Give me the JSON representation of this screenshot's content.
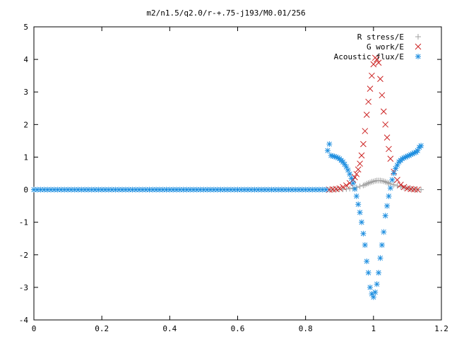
{
  "chart_data": {
    "type": "scatter",
    "title": "m2/n1.5/q2.0/r-+.75-j193/M0.01/256",
    "xlabel": "",
    "ylabel": "",
    "xlim": [
      0,
      1.2
    ],
    "ylim": [
      -4,
      5
    ],
    "x_ticks": [
      "0",
      "0.2",
      "0.4",
      "0.6",
      "0.8",
      "1",
      "1.2"
    ],
    "y_ticks": [
      "-4",
      "-3",
      "-2",
      "-1",
      "0",
      "1",
      "2",
      "3",
      "4",
      "5"
    ],
    "grid": false,
    "legend_position": "top-right",
    "series": [
      {
        "name": "R stress/E",
        "marker": "plus",
        "color": "#a0a0a0",
        "x": [
          0.87,
          0.88,
          0.89,
          0.9,
          0.91,
          0.92,
          0.93,
          0.94,
          0.95,
          0.96,
          0.97,
          0.975,
          0.98,
          0.985,
          0.99,
          0.995,
          1.0,
          1.005,
          1.01,
          1.015,
          1.02,
          1.025,
          1.03,
          1.035,
          1.04,
          1.045,
          1.05,
          1.06,
          1.07,
          1.08,
          1.09,
          1.1,
          1.11,
          1.12,
          1.13,
          1.14
        ],
        "y": [
          0.0,
          0.0,
          0.0,
          0.01,
          0.01,
          0.02,
          0.03,
          0.05,
          0.07,
          0.1,
          0.13,
          0.15,
          0.18,
          0.2,
          0.22,
          0.24,
          0.25,
          0.27,
          0.28,
          0.28,
          0.28,
          0.27,
          0.26,
          0.24,
          0.22,
          0.2,
          0.18,
          0.15,
          0.12,
          0.09,
          0.06,
          0.04,
          0.02,
          0.01,
          0.0,
          0.0
        ]
      },
      {
        "name": "G work/E",
        "marker": "cross",
        "color": "#cc2222",
        "x": [
          0.87,
          0.88,
          0.89,
          0.9,
          0.91,
          0.92,
          0.93,
          0.94,
          0.945,
          0.95,
          0.955,
          0.96,
          0.965,
          0.97,
          0.975,
          0.98,
          0.985,
          0.99,
          0.995,
          1.0,
          1.005,
          1.01,
          1.015,
          1.02,
          1.025,
          1.03,
          1.035,
          1.04,
          1.045,
          1.05,
          1.06,
          1.07,
          1.08,
          1.09,
          1.1,
          1.11,
          1.12,
          1.13
        ],
        "y": [
          0.0,
          0.01,
          0.02,
          0.04,
          0.08,
          0.13,
          0.2,
          0.3,
          0.38,
          0.48,
          0.62,
          0.8,
          1.05,
          1.4,
          1.8,
          2.3,
          2.7,
          3.1,
          3.5,
          3.85,
          4.05,
          4.0,
          3.9,
          3.4,
          2.9,
          2.4,
          2.0,
          1.6,
          1.25,
          0.95,
          0.55,
          0.3,
          0.15,
          0.08,
          0.04,
          0.02,
          0.01,
          0.0
        ]
      },
      {
        "name": "Acoustic flux/E",
        "marker": "star",
        "color": "#1f8fe0",
        "x": [
          0,
          0.01,
          0.02,
          0.03,
          0.04,
          0.05,
          0.06,
          0.07,
          0.08,
          0.09,
          0.1,
          0.11,
          0.12,
          0.13,
          0.14,
          0.15,
          0.16,
          0.17,
          0.18,
          0.19,
          0.2,
          0.21,
          0.22,
          0.23,
          0.24,
          0.25,
          0.26,
          0.27,
          0.28,
          0.29,
          0.3,
          0.31,
          0.32,
          0.33,
          0.34,
          0.35,
          0.36,
          0.37,
          0.38,
          0.39,
          0.4,
          0.41,
          0.42,
          0.43,
          0.44,
          0.45,
          0.46,
          0.47,
          0.48,
          0.49,
          0.5,
          0.51,
          0.52,
          0.53,
          0.54,
          0.55,
          0.56,
          0.57,
          0.58,
          0.59,
          0.6,
          0.61,
          0.62,
          0.63,
          0.64,
          0.65,
          0.66,
          0.67,
          0.68,
          0.69,
          0.7,
          0.71,
          0.72,
          0.73,
          0.74,
          0.75,
          0.76,
          0.77,
          0.78,
          0.79,
          0.8,
          0.81,
          0.82,
          0.83,
          0.84,
          0.85,
          0.86,
          0.865,
          0.87,
          0.875,
          0.88,
          0.885,
          0.89,
          0.895,
          0.9,
          0.905,
          0.91,
          0.915,
          0.92,
          0.925,
          0.93,
          0.935,
          0.94,
          0.945,
          0.95,
          0.955,
          0.96,
          0.965,
          0.97,
          0.975,
          0.98,
          0.985,
          0.99,
          0.995,
          1.0,
          1.005,
          1.01,
          1.015,
          1.02,
          1.025,
          1.03,
          1.035,
          1.04,
          1.045,
          1.05,
          1.055,
          1.06,
          1.065,
          1.07,
          1.075,
          1.08,
          1.085,
          1.09,
          1.095,
          1.1,
          1.105,
          1.11,
          1.115,
          1.12,
          1.125,
          1.13,
          1.135,
          1.14
        ],
        "y": [
          0,
          0,
          0,
          0,
          0,
          0,
          0,
          0,
          0,
          0,
          0,
          0,
          0,
          0,
          0,
          0,
          0,
          0,
          0,
          0,
          0,
          0,
          0,
          0,
          0,
          0,
          0,
          0,
          0,
          0,
          0,
          0,
          0,
          0,
          0,
          0,
          0,
          0,
          0,
          0,
          0,
          0,
          0,
          0,
          0,
          0,
          0,
          0,
          0,
          0,
          0,
          0,
          0,
          0,
          0,
          0,
          0,
          0,
          0,
          0,
          0,
          0,
          0,
          0,
          0,
          0,
          0,
          0,
          0,
          0,
          0,
          0,
          0,
          0,
          0,
          0,
          0,
          0,
          0,
          0,
          0,
          0,
          0,
          0,
          0,
          0,
          0,
          1.2,
          1.4,
          1.05,
          1.03,
          1.02,
          1.0,
          0.98,
          0.95,
          0.9,
          0.85,
          0.78,
          0.7,
          0.6,
          0.48,
          0.35,
          0.2,
          0.02,
          -0.2,
          -0.45,
          -0.7,
          -1.0,
          -1.35,
          -1.7,
          -2.2,
          -2.55,
          -3.0,
          -3.2,
          -3.3,
          -3.15,
          -2.9,
          -2.55,
          -2.1,
          -1.7,
          -1.3,
          -0.8,
          -0.5,
          -0.2,
          0.05,
          0.3,
          0.5,
          0.65,
          0.75,
          0.85,
          0.9,
          0.95,
          0.98,
          1.0,
          1.03,
          1.05,
          1.08,
          1.1,
          1.13,
          1.15,
          1.2,
          1.3,
          1.35
        ]
      }
    ]
  }
}
